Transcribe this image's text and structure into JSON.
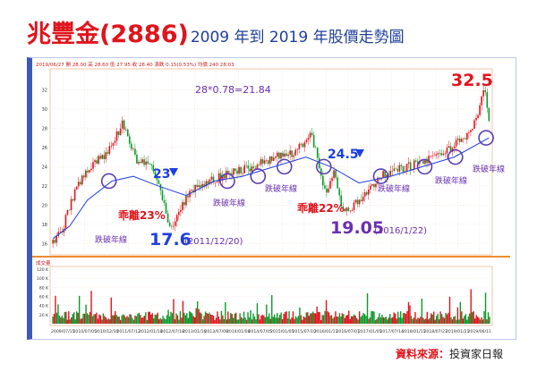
{
  "header": {
    "title_main": "兆豐金(2886)",
    "title_sub": "2009 年到 2019 年股價走勢圖"
  },
  "source": {
    "label": "資料來源：",
    "value": "投資家日報"
  },
  "colors": {
    "up": "#e0141c",
    "down": "#0a9a2a",
    "ma": "#1e3fe0",
    "annot_blue": "#1e3fe0",
    "annot_red": "#e0141c",
    "annot_purple": "#6a2fb0",
    "circle": "#5b3fb0"
  },
  "chart_data": {
    "type": "line",
    "title": "",
    "price_panel": {
      "info_bar": "2019/06/27  開 28.00  高 28.60  低 27.95  收 28.40  漲跌 0.15(0.53%)  均價 240 28.03",
      "series": [
        {
          "name": "",
          "type": "candlestick"
        },
        {
          "name": "",
          "type": "moving_average"
        }
      ],
      "key_points": [
        {
          "x": "2009-03-10",
          "close": 16.0
        },
        {
          "x": "2009-06-01",
          "close": 17.5
        },
        {
          "x": "2009-09-01",
          "close": 21.0
        },
        {
          "x": "2010-01-15",
          "close": 24.0
        },
        {
          "x": "2010-07-01",
          "close": 25.5
        },
        {
          "x": "2010-11-01",
          "close": 28.6
        },
        {
          "x": "2011-03-01",
          "close": 24.5
        },
        {
          "x": "2011-07-15",
          "close": 24.0
        },
        {
          "x": "2011-12-20",
          "close": 17.6
        },
        {
          "x": "2012-06-01",
          "close": 21.5
        },
        {
          "x": "2012-12-01",
          "close": 22.5
        },
        {
          "x": "2013-06-01",
          "close": 23.5
        },
        {
          "x": "2013-12-01",
          "close": 24.0
        },
        {
          "x": "2014-06-01",
          "close": 25.0
        },
        {
          "x": "2014-12-01",
          "close": 25.5
        },
        {
          "x": "2015-04-15",
          "close": 27.5
        },
        {
          "x": "2015-08-24",
          "close": 21.0
        },
        {
          "x": "2015-11-01",
          "close": 23.5
        },
        {
          "x": "2016-01-22",
          "close": 19.05
        },
        {
          "x": "2016-06-01",
          "close": 20.5
        },
        {
          "x": "2016-12-01",
          "close": 23.0
        },
        {
          "x": "2017-06-01",
          "close": 23.8
        },
        {
          "x": "2017-12-01",
          "close": 24.5
        },
        {
          "x": "2018-06-01",
          "close": 25.5
        },
        {
          "x": "2018-12-01",
          "close": 27.0
        },
        {
          "x": "2019-03-15",
          "close": 29.0
        },
        {
          "x": "2019-05-15",
          "close": 32.5
        },
        {
          "x": "2019-06-27",
          "close": 28.4
        }
      ],
      "ma_points": [
        {
          "x": "2009-03-10",
          "y": 16.5
        },
        {
          "x": "2009-08-01",
          "y": 17.8
        },
        {
          "x": "2010-01-01",
          "y": 20.5
        },
        {
          "x": "2010-08-01",
          "y": 22.5
        },
        {
          "x": "2011-02-01",
          "y": 23.0
        },
        {
          "x": "2011-09-01",
          "y": 22.0
        },
        {
          "x": "2012-05-01",
          "y": 21.0
        },
        {
          "x": "2013-01-01",
          "y": 22.5
        },
        {
          "x": "2013-09-01",
          "y": 23.0
        },
        {
          "x": "2014-06-01",
          "y": 24.0
        },
        {
          "x": "2015-03-01",
          "y": 25.0
        },
        {
          "x": "2015-10-01",
          "y": 24.0
        },
        {
          "x": "2016-06-01",
          "y": 22.3
        },
        {
          "x": "2017-03-01",
          "y": 23.0
        },
        {
          "x": "2017-12-01",
          "y": 24.0
        },
        {
          "x": "2018-09-01",
          "y": 25.0
        },
        {
          "x": "2019-06-27",
          "y": 27.0
        }
      ],
      "ylim": [
        15,
        34
      ],
      "y_ticks": [
        16,
        18,
        20,
        22,
        24,
        26,
        28,
        30,
        32
      ],
      "annotations": [
        {
          "text": "28*0.78=21.84",
          "color": "purple"
        },
        {
          "text": "乖離23%",
          "color": "red"
        },
        {
          "text": "17.6",
          "color": "blue"
        },
        {
          "text": "(2011/12/20)",
          "color": "purple"
        },
        {
          "text": "23",
          "color": "blue"
        },
        {
          "text": "24.5",
          "color": "blue"
        },
        {
          "text": "乖離22%",
          "color": "red"
        },
        {
          "text": "19.05",
          "color": "purple"
        },
        {
          "text": "(2016/1/22)",
          "color": "purple"
        },
        {
          "text": "32.5",
          "color": "red"
        },
        {
          "text": "跌破年線",
          "color": "purple"
        }
      ],
      "circles": 9
    },
    "volume_panel": {
      "label_bar": "成交量  ",
      "ylim": [
        0,
        120
      ],
      "y_ticks": [
        "120 K",
        "100 K",
        "80 K",
        "60 K",
        "40 K",
        "20 K"
      ]
    },
    "x_ticks": [
      "2009/07/15",
      "2010/07/05",
      "2010/12/30",
      "2011/07/12",
      "2012/01/18",
      "2012/07/18",
      "2013/01/16",
      "2013/07/09",
      "2014/01/08",
      "2014/07/05",
      "2015/01/05",
      "2015/07/10",
      "2016/01/11",
      "2016/07/01",
      "2017/01/05",
      "2017/07/14",
      "2018/01/11",
      "2018/07/27",
      "2019/01/21",
      "2019/06/11"
    ],
    "xlim": [
      "2009-03-01",
      "2019-07-10"
    ],
    "grid": true
  }
}
